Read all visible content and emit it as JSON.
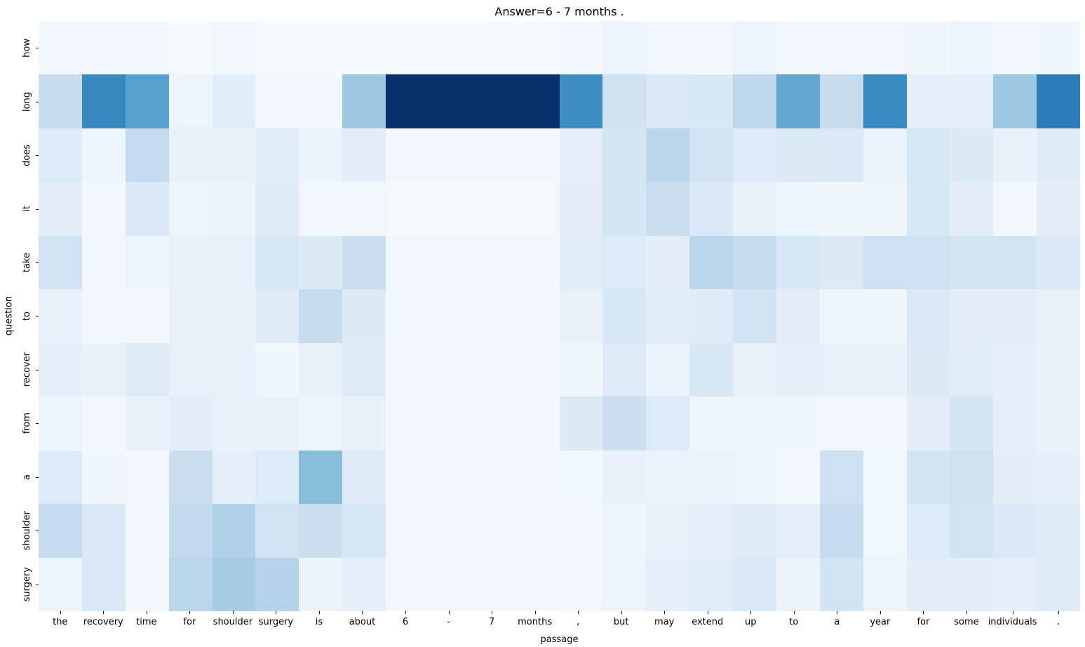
{
  "figure": {
    "background": "#ffffff"
  },
  "chart_data": {
    "type": "heatmap",
    "title": "Answer=6 - 7 months .",
    "xlabel": "passage",
    "ylabel": "question",
    "colormap": "Blues",
    "colormap_stops": [
      {
        "t": 0.0,
        "color": "#f7fbff"
      },
      {
        "t": 0.125,
        "color": "#deebf7"
      },
      {
        "t": 0.25,
        "color": "#c6dbef"
      },
      {
        "t": 0.375,
        "color": "#9ecae1"
      },
      {
        "t": 0.5,
        "color": "#6baed6"
      },
      {
        "t": 0.625,
        "color": "#4292c6"
      },
      {
        "t": 0.75,
        "color": "#2171b5"
      },
      {
        "t": 0.875,
        "color": "#08519c"
      },
      {
        "t": 1.0,
        "color": "#08306b"
      }
    ],
    "x_tokens": [
      "the",
      "recovery",
      "time",
      "for",
      "shoulder",
      "surgery",
      "is",
      "about",
      "6",
      "-",
      "7",
      "months",
      ",",
      "but",
      "may",
      "extend",
      "up",
      "to",
      "a",
      "year",
      "for",
      "some",
      "individuals",
      "."
    ],
    "y_tokens": [
      "how",
      "long",
      "does",
      "it",
      "take",
      "to",
      "recover",
      "from",
      "a",
      "shoulder",
      "surgery"
    ],
    "values": [
      [
        0.02,
        0.02,
        0.03,
        0.015,
        0.02,
        0.015,
        0.015,
        0.015,
        0.01,
        0.01,
        0.01,
        0.01,
        0.02,
        0.05,
        0.03,
        0.02,
        0.05,
        0.03,
        0.02,
        0.03,
        0.04,
        0.05,
        0.025,
        0.04
      ],
      [
        0.24,
        0.66,
        0.56,
        0.05,
        0.11,
        0.02,
        0.02,
        0.38,
        1.0,
        1.0,
        1.0,
        1.0,
        0.64,
        0.2,
        0.14,
        0.15,
        0.27,
        0.53,
        0.24,
        0.65,
        0.09,
        0.09,
        0.38,
        0.71
      ],
      [
        0.13,
        0.05,
        0.25,
        0.07,
        0.07,
        0.11,
        0.06,
        0.1,
        0.02,
        0.02,
        0.02,
        0.02,
        0.09,
        0.17,
        0.29,
        0.19,
        0.13,
        0.135,
        0.14,
        0.06,
        0.16,
        0.135,
        0.07,
        0.12
      ],
      [
        0.1,
        0.03,
        0.14,
        0.05,
        0.06,
        0.12,
        0.03,
        0.03,
        0.015,
        0.015,
        0.015,
        0.015,
        0.1,
        0.17,
        0.23,
        0.14,
        0.07,
        0.05,
        0.04,
        0.04,
        0.15,
        0.1,
        0.03,
        0.1
      ],
      [
        0.19,
        0.03,
        0.05,
        0.08,
        0.08,
        0.16,
        0.135,
        0.22,
        0.02,
        0.02,
        0.02,
        0.02,
        0.11,
        0.13,
        0.1,
        0.28,
        0.24,
        0.15,
        0.135,
        0.21,
        0.21,
        0.17,
        0.19,
        0.14
      ],
      [
        0.08,
        0.025,
        0.025,
        0.075,
        0.07,
        0.12,
        0.24,
        0.135,
        0.02,
        0.02,
        0.02,
        0.02,
        0.08,
        0.16,
        0.11,
        0.12,
        0.19,
        0.1,
        0.05,
        0.04,
        0.14,
        0.1,
        0.1,
        0.08
      ],
      [
        0.09,
        0.07,
        0.12,
        0.075,
        0.07,
        0.04,
        0.075,
        0.12,
        0.02,
        0.02,
        0.02,
        0.02,
        0.04,
        0.12,
        0.06,
        0.15,
        0.075,
        0.09,
        0.08,
        0.07,
        0.135,
        0.11,
        0.09,
        0.07
      ],
      [
        0.05,
        0.025,
        0.07,
        0.1,
        0.07,
        0.07,
        0.045,
        0.07,
        0.02,
        0.02,
        0.02,
        0.02,
        0.135,
        0.22,
        0.13,
        0.045,
        0.045,
        0.04,
        0.03,
        0.03,
        0.1,
        0.17,
        0.09,
        0.07
      ],
      [
        0.13,
        0.04,
        0.03,
        0.23,
        0.09,
        0.13,
        0.43,
        0.12,
        0.025,
        0.025,
        0.025,
        0.025,
        0.035,
        0.07,
        0.065,
        0.055,
        0.05,
        0.03,
        0.21,
        0.035,
        0.18,
        0.2,
        0.1,
        0.095
      ],
      [
        0.25,
        0.14,
        0.03,
        0.26,
        0.32,
        0.19,
        0.22,
        0.16,
        0.02,
        0.02,
        0.02,
        0.02,
        0.03,
        0.05,
        0.07,
        0.09,
        0.12,
        0.09,
        0.25,
        0.035,
        0.13,
        0.19,
        0.14,
        0.12
      ],
      [
        0.05,
        0.14,
        0.03,
        0.29,
        0.35,
        0.3,
        0.06,
        0.095,
        0.02,
        0.02,
        0.02,
        0.02,
        0.03,
        0.05,
        0.09,
        0.115,
        0.14,
        0.06,
        0.18,
        0.05,
        0.1,
        0.1,
        0.09,
        0.12
      ]
    ]
  }
}
